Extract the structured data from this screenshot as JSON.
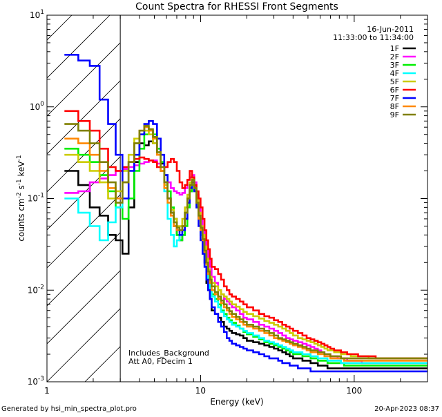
{
  "chart_data": {
    "type": "line",
    "step": true,
    "title": "Count Spectra for RHESSI Front Segments",
    "date": "16-Jun-2011",
    "time_range": "11:33:00 to 11:34:00",
    "xlabel": "Energy (keV)",
    "ylabel": {
      "base": "counts cm",
      "exp1": "-2",
      "mid": " s",
      "exp2": "-1",
      "end": " keV",
      "exp3": "-1"
    },
    "xscale": "log",
    "yscale": "log",
    "xlim": [
      1,
      300
    ],
    "ylim": [
      0.001,
      10
    ],
    "x_ticks": [
      {
        "value": 1,
        "label": "1"
      },
      {
        "value": 10,
        "label": "10"
      },
      {
        "value": 100,
        "label": "100"
      }
    ],
    "y_ticks": [
      {
        "value": 0.001,
        "base": "10",
        "exp": "-3"
      },
      {
        "value": 0.01,
        "base": "10",
        "exp": "-2"
      },
      {
        "value": 0.1,
        "base": "10",
        "exp": "-1"
      },
      {
        "value": 1,
        "base": "10",
        "exp": "0"
      },
      {
        "value": 10,
        "base": "10",
        "exp": "1"
      }
    ],
    "excluded_region": [
      1,
      3
    ],
    "annotations": [
      "Includes_Background",
      "Att A0, FDecim 1"
    ],
    "legend_position": "top-right",
    "energy_edges": [
      1.3,
      1.6,
      1.9,
      2.2,
      2.5,
      2.8,
      3.1,
      3.4,
      3.7,
      4.0,
      4.3,
      4.6,
      4.9,
      5.2,
      5.5,
      5.8,
      6.1,
      6.4,
      6.7,
      7.0,
      7.3,
      7.6,
      7.9,
      8.2,
      8.5,
      8.8,
      9.1,
      9.4,
      9.7,
      10.0,
      10.3,
      10.6,
      10.9,
      11.2,
      11.5,
      11.8,
      12.4,
      13.0,
      13.6,
      14.2,
      14.8,
      15.4,
      16.0,
      17.0,
      18.0,
      19.0,
      20.0,
      22.0,
      24.0,
      26.0,
      28.0,
      30.0,
      32.0,
      34.0,
      36.0,
      38.0,
      40.0,
      43.0,
      46.0,
      49.0,
      52.0,
      55.0,
      58.0,
      61.0,
      64.0,
      67.0,
      70.0,
      74.0,
      78.0,
      82.0,
      86.0,
      90.0,
      95.0,
      100.0,
      106.0,
      112.0,
      118.0,
      124.0,
      130.0,
      138.0,
      146.0,
      154.0,
      162.0,
      170.0,
      180.0,
      190.0,
      200.0,
      212.0,
      224.0,
      236.0,
      250.0,
      265.0,
      280.0,
      300.0
    ],
    "series": [
      {
        "name": "1F",
        "color": "#000000",
        "values": [
          0.2,
          0.14,
          0.08,
          0.065,
          0.04,
          0.035,
          0.025,
          0.08,
          0.25,
          0.4,
          0.38,
          0.42,
          0.4,
          0.3,
          0.24,
          0.15,
          0.1,
          0.075,
          0.06,
          0.04,
          0.035,
          0.04,
          0.06,
          0.09,
          0.12,
          0.15,
          0.13,
          0.09,
          0.06,
          0.04,
          0.025,
          0.02,
          0.012,
          0.01,
          0.008,
          0.006,
          0.0055,
          0.005,
          0.0045,
          0.004,
          0.0038,
          0.0036,
          0.0034,
          0.0033,
          0.0032,
          0.003,
          0.0028,
          0.0027,
          0.0026,
          0.0025,
          0.0024,
          0.0023,
          0.0022,
          0.0021,
          0.002,
          0.0019,
          0.0018,
          0.0018,
          0.0017,
          0.0017,
          0.0016,
          0.0016,
          0.0015,
          0.0015,
          0.0015,
          0.0014,
          0.0014,
          0.0014,
          0.0014,
          0.0014,
          0.0014,
          0.0014,
          0.0014,
          0.0014,
          0.0014,
          0.0014,
          0.0014,
          0.0014,
          0.0014,
          0.0014,
          0.0014,
          0.0014,
          0.0014,
          0.0014,
          0.0014,
          0.0014,
          0.0014,
          0.0014,
          0.0014,
          0.0014,
          0.0014,
          0.0014,
          0.0014
        ]
      },
      {
        "name": "2F",
        "color": "#ff00ff",
        "values": [
          0.115,
          0.12,
          0.15,
          0.165,
          0.18,
          0.2,
          0.21,
          0.22,
          0.23,
          0.24,
          0.25,
          0.26,
          0.26,
          0.24,
          0.22,
          0.18,
          0.15,
          0.13,
          0.12,
          0.115,
          0.11,
          0.115,
          0.13,
          0.16,
          0.17,
          0.18,
          0.15,
          0.11,
          0.08,
          0.06,
          0.045,
          0.035,
          0.028,
          0.022,
          0.018,
          0.014,
          0.012,
          0.01,
          0.009,
          0.008,
          0.0075,
          0.007,
          0.0065,
          0.006,
          0.0055,
          0.005,
          0.0048,
          0.0045,
          0.0042,
          0.004,
          0.0038,
          0.0036,
          0.0034,
          0.0032,
          0.003,
          0.0029,
          0.0028,
          0.0027,
          0.0026,
          0.0025,
          0.0024,
          0.0023,
          0.0022,
          0.0021,
          0.002,
          0.002,
          0.0019,
          0.0019,
          0.0018,
          0.0018,
          0.0018,
          0.0017,
          0.0017,
          0.0017,
          0.0017,
          0.0016,
          0.0016,
          0.0016,
          0.0016,
          0.0016,
          0.0016,
          0.0016,
          0.0016,
          0.0016,
          0.0016,
          0.0016,
          0.0016,
          0.0016,
          0.0016,
          0.0016,
          0.0016,
          0.0016,
          0.0016
        ]
      },
      {
        "name": "3F",
        "color": "#00ee00",
        "values": [
          0.35,
          0.3,
          0.25,
          0.18,
          0.12,
          0.08,
          0.06,
          0.1,
          0.2,
          0.35,
          0.5,
          0.55,
          0.5,
          0.35,
          0.25,
          0.18,
          0.12,
          0.08,
          0.05,
          0.04,
          0.035,
          0.04,
          0.05,
          0.08,
          0.12,
          0.14,
          0.12,
          0.08,
          0.06,
          0.045,
          0.035,
          0.025,
          0.018,
          0.014,
          0.011,
          0.009,
          0.008,
          0.007,
          0.006,
          0.0055,
          0.005,
          0.0047,
          0.0044,
          0.0041,
          0.0038,
          0.0035,
          0.0033,
          0.0031,
          0.0029,
          0.0027,
          0.0026,
          0.0025,
          0.0024,
          0.0023,
          0.0022,
          0.0021,
          0.002,
          0.002,
          0.0019,
          0.0019,
          0.0018,
          0.0018,
          0.0017,
          0.0017,
          0.0017,
          0.0016,
          0.0016,
          0.0016,
          0.0016,
          0.0016,
          0.0015,
          0.0015,
          0.0015,
          0.0015,
          0.0015,
          0.0015,
          0.0015,
          0.0015,
          0.0015,
          0.0015,
          0.0015,
          0.0015,
          0.0015,
          0.0015,
          0.0015,
          0.0015,
          0.0015,
          0.0015,
          0.0015,
          0.0015,
          0.0015,
          0.0015,
          0.0015
        ]
      },
      {
        "name": "4F",
        "color": "#00ffff",
        "values": [
          0.1,
          0.07,
          0.05,
          0.035,
          0.055,
          0.08,
          0.15,
          0.25,
          0.4,
          0.5,
          0.6,
          0.55,
          0.45,
          0.3,
          0.2,
          0.12,
          0.06,
          0.04,
          0.03,
          0.035,
          0.04,
          0.05,
          0.07,
          0.1,
          0.14,
          0.16,
          0.13,
          0.09,
          0.06,
          0.04,
          0.03,
          0.022,
          0.016,
          0.012,
          0.01,
          0.0085,
          0.0075,
          0.0065,
          0.0058,
          0.0052,
          0.0048,
          0.0045,
          0.0042,
          0.004,
          0.0038,
          0.0036,
          0.0034,
          0.0032,
          0.003,
          0.0028,
          0.0027,
          0.0026,
          0.0025,
          0.0024,
          0.0023,
          0.0022,
          0.0021,
          0.0021,
          0.002,
          0.002,
          0.0019,
          0.0019,
          0.0018,
          0.0018,
          0.0018,
          0.0017,
          0.0017,
          0.0017,
          0.0017,
          0.0016,
          0.0016,
          0.0016,
          0.0016,
          0.0016,
          0.0016,
          0.0016,
          0.0016,
          0.0016,
          0.0016,
          0.0016,
          0.0016,
          0.0016,
          0.0016,
          0.0016,
          0.0016,
          0.0016,
          0.0016,
          0.0016,
          0.0016,
          0.0016,
          0.0016,
          0.0016,
          0.0016
        ]
      },
      {
        "name": "5F",
        "color": "#cccc00",
        "values": [
          0.3,
          0.25,
          0.2,
          0.15,
          0.1,
          0.12,
          0.2,
          0.3,
          0.45,
          0.5,
          0.55,
          0.5,
          0.4,
          0.3,
          0.2,
          0.14,
          0.1,
          0.075,
          0.06,
          0.05,
          0.05,
          0.06,
          0.08,
          0.11,
          0.15,
          0.17,
          0.14,
          0.1,
          0.07,
          0.05,
          0.04,
          0.03,
          0.022,
          0.017,
          0.014,
          0.012,
          0.011,
          0.01,
          0.009,
          0.0085,
          0.008,
          0.0075,
          0.007,
          0.0066,
          0.0062,
          0.0058,
          0.0055,
          0.0052,
          0.0049,
          0.0046,
          0.0044,
          0.0042,
          0.004,
          0.0038,
          0.0036,
          0.0034,
          0.0032,
          0.003,
          0.0029,
          0.0028,
          0.0027,
          0.0026,
          0.0025,
          0.0024,
          0.0023,
          0.0022,
          0.0022,
          0.0021,
          0.0021,
          0.002,
          0.002,
          0.002,
          0.0019,
          0.0019,
          0.0019,
          0.0019,
          0.0019,
          0.0018,
          0.0018,
          0.0018,
          0.0018,
          0.0018,
          0.0018,
          0.0018,
          0.0018,
          0.0018,
          0.0018,
          0.0018,
          0.0018,
          0.0018,
          0.0018,
          0.0018,
          0.0018
        ]
      },
      {
        "name": "6F",
        "color": "#ff0000",
        "values": [
          0.9,
          0.7,
          0.55,
          0.35,
          0.22,
          0.2,
          0.22,
          0.25,
          0.27,
          0.28,
          0.27,
          0.26,
          0.25,
          0.22,
          0.2,
          0.22,
          0.25,
          0.27,
          0.25,
          0.2,
          0.15,
          0.13,
          0.14,
          0.16,
          0.2,
          0.17,
          0.14,
          0.12,
          0.1,
          0.08,
          0.06,
          0.045,
          0.035,
          0.028,
          0.022,
          0.018,
          0.017,
          0.015,
          0.013,
          0.011,
          0.01,
          0.009,
          0.0085,
          0.008,
          0.0075,
          0.007,
          0.0065,
          0.006,
          0.0055,
          0.0052,
          0.005,
          0.0047,
          0.0045,
          0.0042,
          0.004,
          0.0038,
          0.0036,
          0.0034,
          0.0032,
          0.003,
          0.0029,
          0.0028,
          0.0027,
          0.0026,
          0.0025,
          0.0024,
          0.0023,
          0.0022,
          0.0022,
          0.0021,
          0.0021,
          0.002,
          0.002,
          0.002,
          0.0019,
          0.0019,
          0.0019,
          0.0019,
          0.0019,
          0.0018,
          0.0018,
          0.0018,
          0.0018,
          0.0018,
          0.0018,
          0.0018,
          0.0018,
          0.0018,
          0.0018,
          0.0018,
          0.0018,
          0.0018,
          0.0018
        ]
      },
      {
        "name": "7F",
        "color": "#0000ff",
        "values": [
          3.7,
          3.2,
          2.8,
          1.2,
          0.65,
          0.3,
          0.1,
          0.2,
          0.3,
          0.5,
          0.65,
          0.7,
          0.65,
          0.45,
          0.3,
          0.18,
          0.1,
          0.07,
          0.05,
          0.045,
          0.04,
          0.045,
          0.06,
          0.09,
          0.13,
          0.15,
          0.12,
          0.08,
          0.05,
          0.035,
          0.025,
          0.018,
          0.013,
          0.01,
          0.008,
          0.0065,
          0.0055,
          0.0045,
          0.004,
          0.0035,
          0.003,
          0.0028,
          0.0026,
          0.0025,
          0.0024,
          0.0023,
          0.0022,
          0.0021,
          0.002,
          0.0019,
          0.0018,
          0.0018,
          0.0017,
          0.0016,
          0.0016,
          0.0015,
          0.0015,
          0.0014,
          0.0014,
          0.0014,
          0.0013,
          0.0013,
          0.0013,
          0.0013,
          0.0013,
          0.0013,
          0.0013,
          0.0013,
          0.0013,
          0.0013,
          0.0013,
          0.0013,
          0.0013,
          0.0013,
          0.0013,
          0.0013,
          0.0013,
          0.0013,
          0.0013,
          0.0013,
          0.0013,
          0.0013,
          0.0013,
          0.0013,
          0.0013,
          0.0013,
          0.0013,
          0.0013,
          0.0013,
          0.0013,
          0.0013,
          0.0013,
          0.0013
        ]
      },
      {
        "name": "8F",
        "color": "#ff8800",
        "values": [
          0.45,
          0.4,
          0.3,
          0.2,
          0.13,
          0.1,
          0.15,
          0.25,
          0.4,
          0.55,
          0.6,
          0.55,
          0.45,
          0.3,
          0.2,
          0.13,
          0.09,
          0.065,
          0.05,
          0.045,
          0.045,
          0.05,
          0.07,
          0.1,
          0.14,
          0.16,
          0.13,
          0.09,
          0.06,
          0.045,
          0.035,
          0.026,
          0.019,
          0.015,
          0.012,
          0.01,
          0.009,
          0.008,
          0.0072,
          0.0065,
          0.006,
          0.0055,
          0.0051,
          0.0048,
          0.0045,
          0.0042,
          0.004,
          0.0038,
          0.0036,
          0.0034,
          0.0032,
          0.003,
          0.0029,
          0.0028,
          0.0027,
          0.0026,
          0.0025,
          0.0024,
          0.0023,
          0.0022,
          0.0021,
          0.0021,
          0.002,
          0.002,
          0.0019,
          0.0019,
          0.0018,
          0.0018,
          0.0018,
          0.0018,
          0.0017,
          0.0017,
          0.0017,
          0.0017,
          0.0017,
          0.0017,
          0.0017,
          0.0017,
          0.0017,
          0.0017,
          0.0017,
          0.0017,
          0.0017,
          0.0017,
          0.0017,
          0.0017,
          0.0017,
          0.0017,
          0.0017,
          0.0017,
          0.0017,
          0.0017,
          0.0017
        ]
      },
      {
        "name": "9F",
        "color": "#808000",
        "values": [
          0.65,
          0.55,
          0.4,
          0.25,
          0.15,
          0.09,
          0.15,
          0.25,
          0.4,
          0.55,
          0.62,
          0.57,
          0.47,
          0.32,
          0.22,
          0.15,
          0.1,
          0.07,
          0.055,
          0.048,
          0.045,
          0.05,
          0.07,
          0.1,
          0.14,
          0.16,
          0.13,
          0.09,
          0.065,
          0.048,
          0.036,
          0.027,
          0.02,
          0.016,
          0.013,
          0.011,
          0.0095,
          0.0085,
          0.0077,
          0.007,
          0.0064,
          0.0059,
          0.0055,
          0.0051,
          0.0048,
          0.0045,
          0.0042,
          0.004,
          0.0038,
          0.0036,
          0.0034,
          0.0032,
          0.003,
          0.0029,
          0.0028,
          0.0027,
          0.0026,
          0.0025,
          0.0024,
          0.0023,
          0.0022,
          0.0022,
          0.0021,
          0.0021,
          0.002,
          0.002,
          0.0019,
          0.0019,
          0.0019,
          0.0018,
          0.0018,
          0.0018,
          0.0018,
          0.0018,
          0.0018,
          0.0018,
          0.0018,
          0.0018,
          0.0018,
          0.0018,
          0.0018,
          0.0018,
          0.0018,
          0.0018,
          0.0018,
          0.0018,
          0.0018,
          0.0018,
          0.0018,
          0.0018,
          0.0018,
          0.0018,
          0.0018
        ]
      }
    ]
  },
  "footer": {
    "generated_by": "Generated by hsi_min_spectra_plot.pro",
    "timestamp": "20-Apr-2023 08:37"
  }
}
